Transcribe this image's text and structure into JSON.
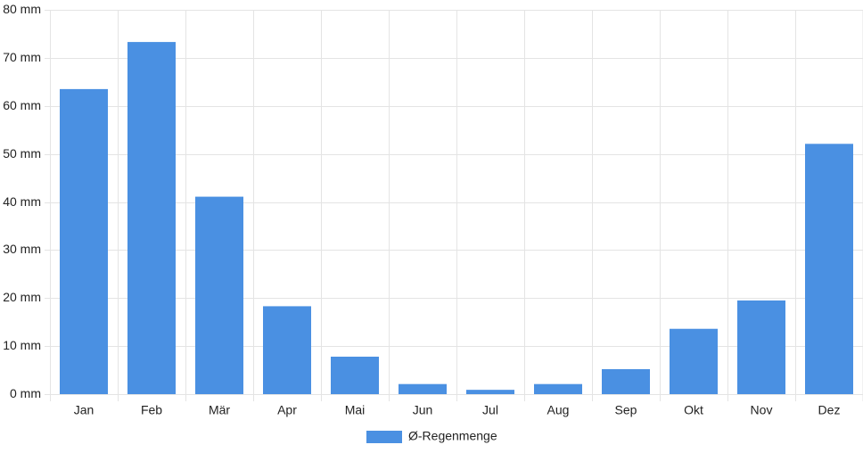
{
  "chart_data": {
    "type": "bar",
    "categories": [
      "Jan",
      "Feb",
      "Mär",
      "Apr",
      "Mai",
      "Jun",
      "Jul",
      "Aug",
      "Sep",
      "Okt",
      "Nov",
      "Dez"
    ],
    "series": [
      {
        "name": "Ø-Regenmenge",
        "color": "#4a90e2",
        "values": [
          63.5,
          73.3,
          41.1,
          18.3,
          7.8,
          2.1,
          0.9,
          2.1,
          5.2,
          13.6,
          19.5,
          52.1
        ]
      }
    ],
    "ylim": [
      0,
      80
    ],
    "yticks": [
      {
        "value": 0,
        "label": "0 mm"
      },
      {
        "value": 10,
        "label": "10 mm"
      },
      {
        "value": 20,
        "label": "20 mm"
      },
      {
        "value": 30,
        "label": "30 mm"
      },
      {
        "value": 40,
        "label": "40 mm"
      },
      {
        "value": 50,
        "label": "50 mm"
      },
      {
        "value": 60,
        "label": "60 mm"
      },
      {
        "value": 70,
        "label": "70 mm"
      },
      {
        "value": 80,
        "label": "80 mm"
      }
    ],
    "grid": true
  }
}
